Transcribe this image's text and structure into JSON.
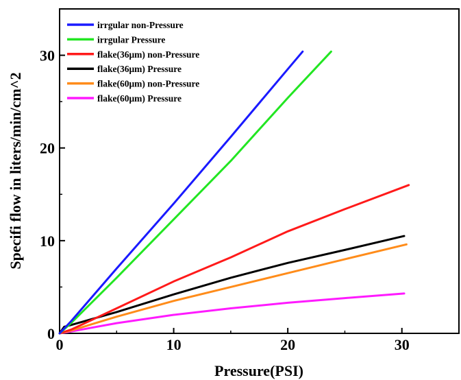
{
  "chart_data": {
    "type": "line",
    "title": "",
    "xlabel": "Pressure(PSI)",
    "ylabel": "Specifi flow in liters/min/cm^2",
    "xlim": [
      0,
      35
    ],
    "ylim": [
      0,
      35
    ],
    "xticks": [
      0,
      10,
      20,
      30
    ],
    "yticks": [
      0,
      10,
      20,
      30
    ],
    "xtick_labels": [
      "0",
      "10",
      "20",
      "30"
    ],
    "ytick_labels": [
      "0",
      "10",
      "20",
      "30"
    ],
    "grid": false,
    "legend_position": "top-left",
    "series": [
      {
        "name": "irrgular non-Pressure",
        "color": "#1a1aff",
        "x": [
          0,
          1,
          5,
          10,
          15,
          20,
          21.3
        ],
        "y": [
          0,
          1.3,
          7.0,
          14.0,
          21.2,
          28.5,
          30.4
        ]
      },
      {
        "name": "irrgular Pressure",
        "color": "#22e622",
        "x": [
          0,
          1,
          5,
          10,
          15,
          20,
          23.8
        ],
        "y": [
          0,
          1.1,
          6.0,
          12.3,
          18.6,
          25.4,
          30.4
        ]
      },
      {
        "name": "flake(36μm) non-Pressure",
        "color": "#ff1a1a",
        "x": [
          0,
          1,
          5,
          10,
          15,
          20,
          25,
          30.6
        ],
        "y": [
          0,
          0.4,
          2.7,
          5.6,
          8.2,
          11.0,
          13.4,
          16.0
        ]
      },
      {
        "name": "flake(36μm) Pressure",
        "color": "#000000",
        "x": [
          0,
          0.4,
          1,
          5,
          10,
          15,
          20,
          25,
          30.2
        ],
        "y": [
          0,
          0.7,
          0.9,
          2.3,
          4.2,
          6.0,
          7.6,
          9.0,
          10.5
        ]
      },
      {
        "name": "flake(60μm) non-Pressure",
        "color": "#ff8c1a",
        "x": [
          0,
          1,
          5,
          10,
          15,
          20,
          25,
          30.4
        ],
        "y": [
          0,
          0.3,
          1.8,
          3.5,
          5.0,
          6.5,
          8.0,
          9.6
        ]
      },
      {
        "name": "flake(60μm) Pressure",
        "color": "#ff1aff",
        "x": [
          0,
          1,
          5,
          10,
          15,
          20,
          25,
          30.2
        ],
        "y": [
          0,
          0.2,
          1.1,
          2.0,
          2.7,
          3.3,
          3.8,
          4.3
        ]
      }
    ]
  }
}
